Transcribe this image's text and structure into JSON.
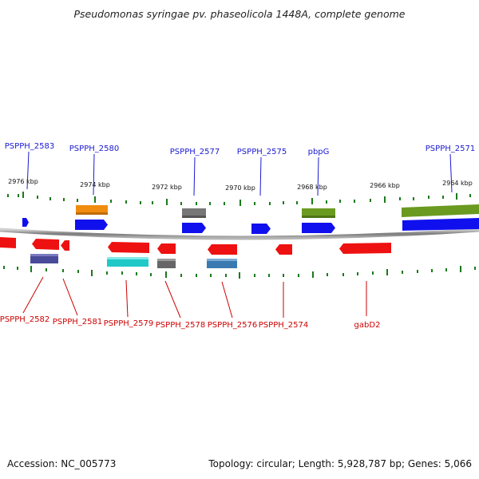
{
  "title": "Pseudomonas syringae pv. phaseolicola 1448A, complete genome",
  "footer": {
    "accession": "Accession: NC_005773",
    "topology": "Topology: circular; Length: 5,928,787 bp; Genes: 5,066"
  },
  "kbp_ticks": [
    "2976 kbp",
    "2974 kbp",
    "2972 kbp",
    "2970 kbp",
    "2968 kbp",
    "2966 kbp",
    "2964 kbp"
  ],
  "top_labels": [
    "PSPPH_2583",
    "PSPPH_2580",
    "PSPPH_2577",
    "PSPPH_2575",
    "pbpG",
    "PSPPH_2571"
  ],
  "bottom_labels": [
    "PSPPH_2582",
    "PSPPH_2581",
    "PSPPH_2579",
    "PSPPH_2578",
    "PSPPH_2576",
    "PSPPH_2574",
    "gabD2"
  ],
  "colors": {
    "forward_strand": "#1010ee",
    "reverse_strand": "#ee1111",
    "top_label": "#1a1ad0",
    "bottom_label": "#cc0000",
    "tick": "#1a7a1a",
    "backbone": "#888888"
  }
}
